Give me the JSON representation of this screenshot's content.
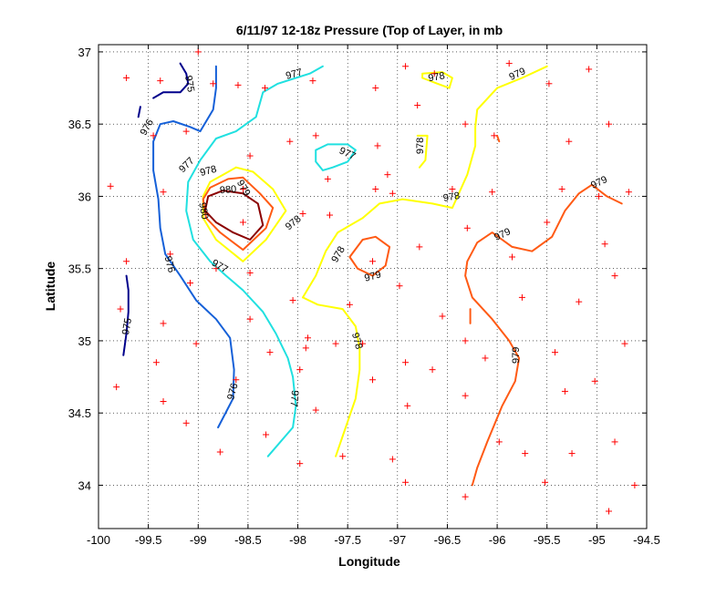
{
  "chart_data": {
    "type": "contour",
    "title": "6/11/97 12-18z Pressure (Top of Layer, in mb",
    "xlabel": "Longitude",
    "ylabel": "Latitude",
    "xlim": [
      -100,
      -94.5
    ],
    "ylim": [
      33.7,
      37.05
    ],
    "xticks": [
      -100,
      -99.5,
      -99,
      -98.5,
      -98,
      -97.5,
      -97,
      -96.5,
      -96,
      -95.5,
      -95,
      -94.5
    ],
    "yticks": [
      34,
      34.5,
      35,
      35.5,
      36,
      36.5,
      37
    ],
    "xtick_labels": [
      "-100",
      "-99.5",
      "-99",
      "-98.5",
      "-98",
      "-97.5",
      "-97",
      "-96.5",
      "-96",
      "-95.5",
      "-95",
      "-94.5"
    ],
    "ytick_labels": [
      "34",
      "34.5",
      "35",
      "35.5",
      "36",
      "36.5",
      "37"
    ],
    "grid": true,
    "levels": [
      {
        "level": 975,
        "color": "#00008b"
      },
      {
        "level": 976,
        "color": "#1560d8"
      },
      {
        "level": 977,
        "color": "#20e0e0"
      },
      {
        "level": 978,
        "color": "#ffff00"
      },
      {
        "level": 979,
        "color": "#ff5a14"
      },
      {
        "level": 980,
        "color": "#8b0000"
      }
    ],
    "contours": [
      {
        "level": 975,
        "points": [
          [
            -99.18,
            36.92
          ],
          [
            -99.12,
            36.85
          ],
          [
            -99.1,
            36.78
          ],
          [
            -99.18,
            36.72
          ],
          [
            -99.35,
            36.72
          ],
          [
            -99.45,
            36.68
          ]
        ]
      },
      {
        "level": 975,
        "points": [
          [
            -99.58,
            36.62
          ],
          [
            -99.6,
            36.55
          ]
        ]
      },
      {
        "level": 975,
        "points": [
          [
            -99.72,
            35.45
          ],
          [
            -99.7,
            35.35
          ],
          [
            -99.7,
            35.2
          ],
          [
            -99.72,
            35.05
          ],
          [
            -99.75,
            34.9
          ]
        ]
      },
      {
        "level": 976,
        "points": [
          [
            -98.82,
            36.9
          ],
          [
            -98.82,
            36.75
          ],
          [
            -98.85,
            36.6
          ],
          [
            -98.98,
            36.45
          ],
          [
            -99.08,
            36.48
          ],
          [
            -99.25,
            36.52
          ],
          [
            -99.38,
            36.5
          ],
          [
            -99.45,
            36.38
          ],
          [
            -99.45,
            36.18
          ],
          [
            -99.4,
            35.98
          ],
          [
            -99.38,
            35.78
          ],
          [
            -99.33,
            35.6
          ],
          [
            -99.18,
            35.45
          ],
          [
            -99.02,
            35.28
          ],
          [
            -98.82,
            35.15
          ],
          [
            -98.68,
            35.02
          ],
          [
            -98.64,
            34.8
          ],
          [
            -98.65,
            34.6
          ],
          [
            -98.8,
            34.4
          ]
        ]
      },
      {
        "level": 977,
        "points": [
          [
            -97.75,
            36.9
          ],
          [
            -97.88,
            36.85
          ],
          [
            -98.02,
            36.82
          ],
          [
            -98.2,
            36.78
          ],
          [
            -98.35,
            36.72
          ],
          [
            -98.42,
            36.55
          ],
          [
            -98.62,
            36.45
          ],
          [
            -98.82,
            36.4
          ],
          [
            -98.98,
            36.25
          ],
          [
            -99.1,
            36.1
          ],
          [
            -99.12,
            35.9
          ],
          [
            -99.05,
            35.7
          ],
          [
            -98.88,
            35.55
          ],
          [
            -98.72,
            35.45
          ],
          [
            -98.55,
            35.35
          ],
          [
            -98.35,
            35.2
          ],
          [
            -98.22,
            35.05
          ],
          [
            -98.1,
            34.88
          ],
          [
            -98.05,
            34.75
          ],
          [
            -98.02,
            34.55
          ],
          [
            -98.05,
            34.4
          ],
          [
            -98.3,
            34.2
          ]
        ]
      },
      {
        "level": 977,
        "points": [
          [
            -97.75,
            36.18
          ],
          [
            -97.65,
            36.2
          ],
          [
            -97.5,
            36.24
          ],
          [
            -97.42,
            36.32
          ],
          [
            -97.5,
            36.36
          ],
          [
            -97.7,
            36.36
          ],
          [
            -97.82,
            36.32
          ],
          [
            -97.82,
            36.24
          ],
          [
            -97.75,
            36.18
          ]
        ]
      },
      {
        "level": 978,
        "points": [
          [
            -98.62,
            36.2
          ],
          [
            -98.75,
            36.15
          ],
          [
            -98.88,
            36.1
          ],
          [
            -98.95,
            36.0
          ],
          [
            -98.95,
            35.85
          ],
          [
            -98.82,
            35.7
          ],
          [
            -98.55,
            35.55
          ],
          [
            -98.32,
            35.7
          ],
          [
            -98.12,
            35.9
          ],
          [
            -98.25,
            36.05
          ],
          [
            -98.45,
            36.17
          ],
          [
            -98.62,
            36.2
          ]
        ]
      },
      {
        "level": 978,
        "points": [
          [
            -97.95,
            35.3
          ],
          [
            -97.82,
            35.45
          ],
          [
            -97.72,
            35.62
          ],
          [
            -97.6,
            35.75
          ],
          [
            -97.35,
            35.85
          ],
          [
            -97.18,
            35.95
          ],
          [
            -96.95,
            35.98
          ],
          [
            -96.65,
            35.95
          ],
          [
            -96.45,
            35.92
          ],
          [
            -96.3,
            36.15
          ],
          [
            -96.22,
            36.35
          ],
          [
            -96.22,
            36.48
          ],
          [
            -96.2,
            36.6
          ],
          [
            -96.0,
            36.75
          ],
          [
            -95.75,
            36.82
          ],
          [
            -95.5,
            36.9
          ]
        ]
      },
      {
        "level": 978,
        "points": [
          [
            -97.95,
            35.3
          ],
          [
            -97.8,
            35.25
          ],
          [
            -97.55,
            35.22
          ],
          [
            -97.42,
            35.1
          ],
          [
            -97.38,
            34.95
          ],
          [
            -97.38,
            34.8
          ],
          [
            -97.42,
            34.6
          ],
          [
            -97.52,
            34.4
          ],
          [
            -97.62,
            34.2
          ]
        ]
      },
      {
        "level": 978,
        "points": [
          [
            -96.75,
            36.82
          ],
          [
            -96.6,
            36.78
          ],
          [
            -96.48,
            36.75
          ],
          [
            -96.45,
            36.82
          ],
          [
            -96.55,
            36.86
          ],
          [
            -96.75,
            36.85
          ],
          [
            -96.75,
            36.82
          ]
        ]
      },
      {
        "level": 978,
        "points": [
          [
            -96.8,
            36.42
          ],
          [
            -96.7,
            36.42
          ],
          [
            -96.72,
            36.25
          ],
          [
            -96.78,
            36.2
          ]
        ]
      },
      {
        "level": 979,
        "points": [
          [
            -98.55,
            36.13
          ],
          [
            -98.7,
            36.12
          ],
          [
            -98.88,
            36.06
          ],
          [
            -98.95,
            35.98
          ],
          [
            -98.92,
            35.85
          ],
          [
            -98.78,
            35.75
          ],
          [
            -98.55,
            35.63
          ],
          [
            -98.32,
            35.78
          ],
          [
            -98.25,
            35.92
          ],
          [
            -98.38,
            36.02
          ],
          [
            -98.55,
            36.13
          ]
        ]
      },
      {
        "level": 979,
        "points": [
          [
            -97.35,
            35.7
          ],
          [
            -97.22,
            35.72
          ],
          [
            -97.08,
            35.65
          ],
          [
            -97.12,
            35.52
          ],
          [
            -97.25,
            35.45
          ],
          [
            -97.4,
            35.5
          ],
          [
            -97.48,
            35.58
          ],
          [
            -97.35,
            35.7
          ]
        ]
      },
      {
        "level": 979,
        "points": [
          [
            -94.75,
            35.95
          ],
          [
            -94.9,
            36.0
          ],
          [
            -95.05,
            36.08
          ],
          [
            -95.18,
            36.02
          ],
          [
            -95.32,
            35.9
          ],
          [
            -95.45,
            35.72
          ],
          [
            -95.65,
            35.62
          ],
          [
            -95.85,
            35.65
          ],
          [
            -96.05,
            35.75
          ],
          [
            -96.2,
            35.68
          ],
          [
            -96.3,
            35.55
          ],
          [
            -96.32,
            35.45
          ],
          [
            -96.25,
            35.3
          ],
          [
            -96.05,
            35.15
          ],
          [
            -95.88,
            35.0
          ],
          [
            -95.78,
            34.88
          ],
          [
            -95.82,
            34.72
          ],
          [
            -95.95,
            34.55
          ],
          [
            -96.1,
            34.3
          ],
          [
            -96.2,
            34.12
          ],
          [
            -96.25,
            34.0
          ]
        ]
      },
      {
        "level": 979,
        "points": [
          [
            -96.0,
            36.42
          ],
          [
            -95.98,
            36.38
          ]
        ]
      },
      {
        "level": 979,
        "points": [
          [
            -96.27,
            35.22
          ],
          [
            -96.27,
            35.12
          ]
        ]
      },
      {
        "level": 980,
        "points": [
          [
            -98.75,
            36.04
          ],
          [
            -98.9,
            36.0
          ],
          [
            -98.93,
            35.9
          ],
          [
            -98.82,
            35.82
          ],
          [
            -98.65,
            35.75
          ],
          [
            -98.48,
            35.7
          ],
          [
            -98.35,
            35.8
          ],
          [
            -98.4,
            35.95
          ],
          [
            -98.55,
            36.02
          ],
          [
            -98.75,
            36.04
          ]
        ]
      }
    ],
    "contour_labels": [
      {
        "text": "975",
        "x": -99.08,
        "y": 36.78,
        "angle": 80
      },
      {
        "text": "975",
        "x": -99.72,
        "y": 35.1,
        "angle": -80
      },
      {
        "text": "976",
        "x": -99.52,
        "y": 36.48,
        "angle": -60
      },
      {
        "text": "976",
        "x": -99.28,
        "y": 35.53,
        "angle": 75
      },
      {
        "text": "976",
        "x": -98.66,
        "y": 34.65,
        "angle": -75
      },
      {
        "text": "977",
        "x": -98.04,
        "y": 36.85,
        "angle": -15
      },
      {
        "text": "977",
        "x": -99.12,
        "y": 36.22,
        "angle": -45
      },
      {
        "text": "977",
        "x": -98.78,
        "y": 35.52,
        "angle": 30
      },
      {
        "text": "977",
        "x": -98.03,
        "y": 34.6,
        "angle": 95
      },
      {
        "text": "977",
        "x": -97.5,
        "y": 36.3,
        "angle": 25
      },
      {
        "text": "978",
        "x": -96.61,
        "y": 36.83,
        "angle": -10
      },
      {
        "text": "978",
        "x": -98.9,
        "y": 36.18,
        "angle": -15
      },
      {
        "text": "978",
        "x": -96.78,
        "y": 36.35,
        "angle": -90
      },
      {
        "text": "978",
        "x": -96.46,
        "y": 36.0,
        "angle": -10
      },
      {
        "text": "978",
        "x": -97.6,
        "y": 35.6,
        "angle": -60
      },
      {
        "text": "978",
        "x": -97.4,
        "y": 35.0,
        "angle": 75
      },
      {
        "text": "978",
        "x": -98.05,
        "y": 35.82,
        "angle": -40
      },
      {
        "text": "979",
        "x": -95.8,
        "y": 36.85,
        "angle": -25
      },
      {
        "text": "979",
        "x": -94.98,
        "y": 36.1,
        "angle": -25
      },
      {
        "text": "979",
        "x": -95.95,
        "y": 35.74,
        "angle": -25
      },
      {
        "text": "979",
        "x": -97.25,
        "y": 35.45,
        "angle": -15
      },
      {
        "text": "979",
        "x": -95.82,
        "y": 34.9,
        "angle": -90
      },
      {
        "text": "979",
        "x": -98.54,
        "y": 36.06,
        "angle": 60
      },
      {
        "text": "980",
        "x": -98.7,
        "y": 36.05,
        "angle": -5
      },
      {
        "text": "980",
        "x": -98.94,
        "y": 35.9,
        "angle": 80
      }
    ],
    "stations": [
      [
        -99.0,
        37.0
      ],
      [
        -99.72,
        36.82
      ],
      [
        -99.38,
        36.8
      ],
      [
        -98.85,
        36.78
      ],
      [
        -98.6,
        36.77
      ],
      [
        -98.33,
        36.75
      ],
      [
        -97.85,
        36.8
      ],
      [
        -97.22,
        36.75
      ],
      [
        -96.92,
        36.9
      ],
      [
        -96.63,
        36.85
      ],
      [
        -95.88,
        36.92
      ],
      [
        -95.48,
        36.78
      ],
      [
        -95.08,
        36.88
      ],
      [
        -99.45,
        36.42
      ],
      [
        -99.12,
        36.45
      ],
      [
        -98.08,
        36.38
      ],
      [
        -97.82,
        36.42
      ],
      [
        -97.2,
        36.35
      ],
      [
        -96.8,
        36.63
      ],
      [
        -96.32,
        36.5
      ],
      [
        -96.03,
        36.42
      ],
      [
        -95.28,
        36.38
      ],
      [
        -94.88,
        36.5
      ],
      [
        -99.88,
        36.07
      ],
      [
        -99.35,
        36.03
      ],
      [
        -98.48,
        36.28
      ],
      [
        -98.55,
        36.05
      ],
      [
        -97.7,
        36.12
      ],
      [
        -97.22,
        36.05
      ],
      [
        -97.1,
        36.15
      ],
      [
        -97.05,
        36.02
      ],
      [
        -96.45,
        36.05
      ],
      [
        -96.05,
        36.03
      ],
      [
        -95.35,
        36.05
      ],
      [
        -94.98,
        36.0
      ],
      [
        -94.68,
        36.03
      ],
      [
        -98.55,
        35.82
      ],
      [
        -97.95,
        35.88
      ],
      [
        -97.68,
        35.87
      ],
      [
        -96.78,
        35.65
      ],
      [
        -96.3,
        35.78
      ],
      [
        -95.85,
        35.58
      ],
      [
        -95.5,
        35.82
      ],
      [
        -94.92,
        35.67
      ],
      [
        -99.72,
        35.55
      ],
      [
        -99.28,
        35.6
      ],
      [
        -98.82,
        35.5
      ],
      [
        -98.48,
        35.47
      ],
      [
        -97.25,
        35.55
      ],
      [
        -96.98,
        35.38
      ],
      [
        -96.55,
        35.17
      ],
      [
        -95.75,
        35.3
      ],
      [
        -95.18,
        35.27
      ],
      [
        -94.82,
        35.45
      ],
      [
        -99.08,
        35.4
      ],
      [
        -99.78,
        35.22
      ],
      [
        -99.35,
        35.12
      ],
      [
        -98.48,
        35.15
      ],
      [
        -98.05,
        35.28
      ],
      [
        -97.9,
        35.02
      ],
      [
        -97.48,
        35.25
      ],
      [
        -97.35,
        34.98
      ],
      [
        -99.02,
        34.98
      ],
      [
        -98.28,
        34.92
      ],
      [
        -97.92,
        34.95
      ],
      [
        -97.62,
        34.98
      ],
      [
        -96.92,
        34.85
      ],
      [
        -96.32,
        35.0
      ],
      [
        -96.12,
        34.88
      ],
      [
        -95.42,
        34.92
      ],
      [
        -94.72,
        34.98
      ],
      [
        -99.82,
        34.68
      ],
      [
        -99.42,
        34.85
      ],
      [
        -99.35,
        34.58
      ],
      [
        -98.62,
        34.73
      ],
      [
        -97.98,
        34.8
      ],
      [
        -97.25,
        34.73
      ],
      [
        -96.65,
        34.8
      ],
      [
        -96.9,
        34.55
      ],
      [
        -96.32,
        34.62
      ],
      [
        -95.32,
        34.65
      ],
      [
        -95.02,
        34.72
      ],
      [
        -99.12,
        34.43
      ],
      [
        -98.78,
        34.23
      ],
      [
        -98.32,
        34.35
      ],
      [
        -97.82,
        34.52
      ],
      [
        -97.55,
        34.2
      ],
      [
        -97.05,
        34.18
      ],
      [
        -96.92,
        34.02
      ],
      [
        -96.32,
        33.92
      ],
      [
        -95.98,
        34.3
      ],
      [
        -95.72,
        34.22
      ],
      [
        -95.52,
        34.02
      ],
      [
        -95.25,
        34.22
      ],
      [
        -94.82,
        34.3
      ],
      [
        -94.88,
        33.82
      ],
      [
        -94.62,
        34.0
      ],
      [
        -97.98,
        34.15
      ]
    ]
  }
}
